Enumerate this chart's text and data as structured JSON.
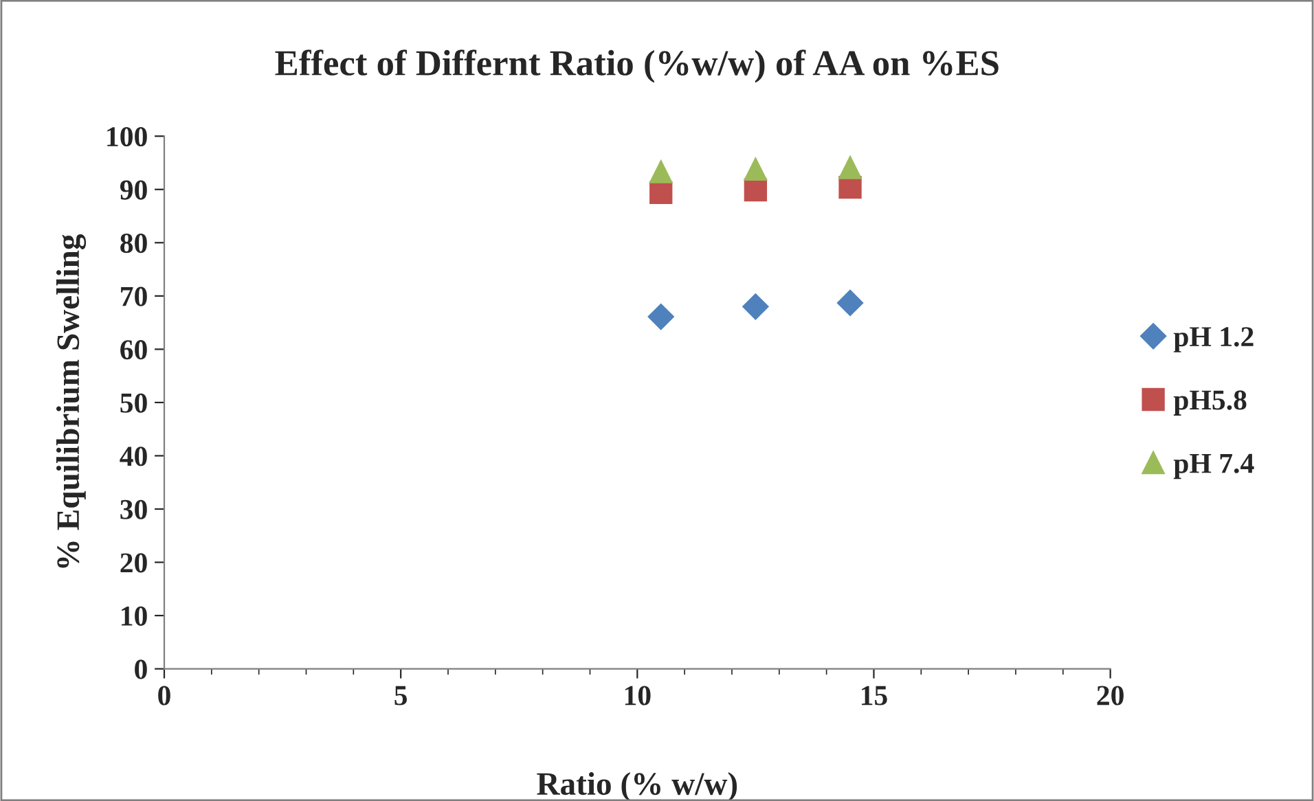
{
  "chart_data": {
    "type": "scatter",
    "title": "Effect of Differnt Ratio (%w/w) of AA on %ES",
    "xlabel": "Ratio (% w/w)",
    "ylabel": "% Equilibrium Swelling",
    "x": [
      10.5,
      12.5,
      14.5
    ],
    "series": [
      {
        "name": "pH 1.2",
        "color": "#4f81bd",
        "marker": "diamond",
        "values": [
          66.1,
          68.0,
          68.7
        ]
      },
      {
        "name": "pH5.8",
        "color": "#c0504d",
        "marker": "square",
        "values": [
          89.4,
          89.9,
          90.4
        ]
      },
      {
        "name": "pH 7.4",
        "color": "#9bbb59",
        "marker": "triangle",
        "values": [
          93.3,
          93.8,
          94.1
        ]
      }
    ],
    "xlim": [
      0,
      20
    ],
    "xticks": [
      0,
      5,
      10,
      15,
      20
    ],
    "ylim": [
      0,
      100
    ],
    "yticks": [
      0,
      10,
      20,
      30,
      40,
      50,
      60,
      70,
      80,
      90,
      100
    ],
    "grid": false,
    "legend": "right"
  }
}
